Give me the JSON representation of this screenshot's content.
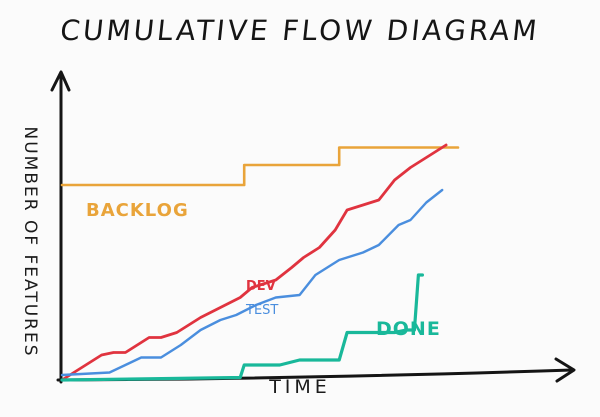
{
  "title": "CUMULATIVE FLOW DIAGRAM",
  "colors": {
    "backlog": "#e9a43a",
    "dev": "#e0333f",
    "test": "#4a8ede",
    "done": "#19b89a",
    "axis": "#151515"
  },
  "chart_data": {
    "type": "line",
    "title": "CUMULATIVE FLOW DIAGRAM",
    "xlabel": "TIME",
    "ylabel": "NUMBER OF FEATURES",
    "grid": false,
    "legend": "inline labels",
    "xlim": [
      0,
      100
    ],
    "ylim": [
      0,
      100
    ],
    "series": [
      {
        "name": "BACKLOG",
        "color": "#e9a43a",
        "x": [
          0,
          46,
          46,
          70,
          70,
          100
        ],
        "y": [
          78,
          78,
          86,
          86,
          93,
          93
        ]
      },
      {
        "name": "DEV",
        "color": "#e0333f",
        "x": [
          0,
          10,
          13,
          16,
          22,
          25,
          29,
          35,
          40,
          45,
          48,
          54,
          58,
          61,
          65,
          69,
          72,
          76,
          80,
          84,
          88,
          93,
          97
        ],
        "y": [
          0,
          10,
          11,
          11,
          17,
          17,
          19,
          25,
          29,
          33,
          37,
          40,
          45,
          49,
          53,
          60,
          68,
          70,
          72,
          80,
          85,
          90,
          94
        ]
      },
      {
        "name": "TEST",
        "color": "#4a8ede",
        "x": [
          0,
          12,
          16,
          20,
          25,
          30,
          35,
          40,
          44,
          49,
          54,
          60,
          64,
          70,
          76,
          80,
          85,
          88,
          92,
          96
        ],
        "y": [
          2,
          3,
          6,
          9,
          9,
          14,
          20,
          24,
          26,
          30,
          33,
          34,
          42,
          48,
          51,
          54,
          62,
          64,
          71,
          76
        ]
      },
      {
        "name": "DONE",
        "color": "#19b89a",
        "x": [
          0,
          45,
          46,
          55,
          60,
          70,
          72,
          84,
          87,
          89,
          90,
          91
        ],
        "y": [
          0,
          1,
          6,
          6,
          8,
          8,
          19,
          19,
          20,
          20,
          42,
          42
        ]
      }
    ]
  }
}
